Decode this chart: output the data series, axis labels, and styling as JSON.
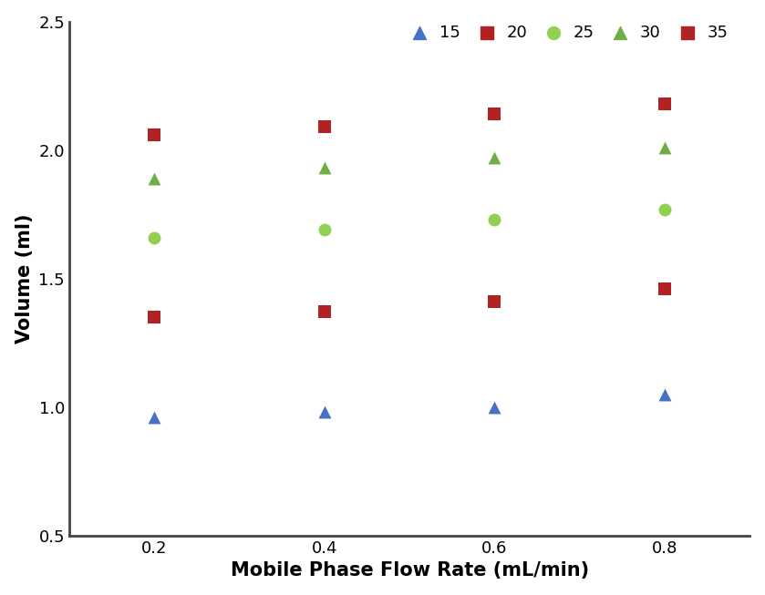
{
  "x": [
    0.2,
    0.4,
    0.6,
    0.8
  ],
  "series": [
    {
      "label": "15",
      "color": "#4472C4",
      "marker": "^",
      "values": [
        0.96,
        0.98,
        1.0,
        1.05
      ]
    },
    {
      "label": "20",
      "color": "#B22222",
      "marker": "s",
      "values": [
        2.06,
        2.09,
        2.14,
        2.18
      ]
    },
    {
      "label": "25",
      "color": "#92D050",
      "marker": "o",
      "values": [
        1.66,
        1.69,
        1.73,
        1.77
      ]
    },
    {
      "label": "30",
      "color": "#70AD47",
      "marker": "^",
      "values": [
        1.89,
        1.93,
        1.97,
        2.01
      ]
    },
    {
      "label": "35",
      "color": "#B22222",
      "marker": "s",
      "values": [
        1.35,
        1.37,
        1.41,
        1.46
      ]
    }
  ],
  "xlabel": "Mobile Phase Flow Rate (mL/min)",
  "ylabel": "Volume (ml)",
  "xlim": [
    0.1,
    0.9
  ],
  "ylim": [
    0.5,
    2.5
  ],
  "xticks": [
    0.2,
    0.4,
    0.6,
    0.8
  ],
  "yticks": [
    0.5,
    1.0,
    1.5,
    2.0,
    2.5
  ],
  "marker_size": 100,
  "background_color": "#ffffff",
  "label_fontsize": 15,
  "tick_fontsize": 13,
  "legend_fontsize": 13,
  "border_color": "#888888",
  "border_linewidth": 1.5
}
